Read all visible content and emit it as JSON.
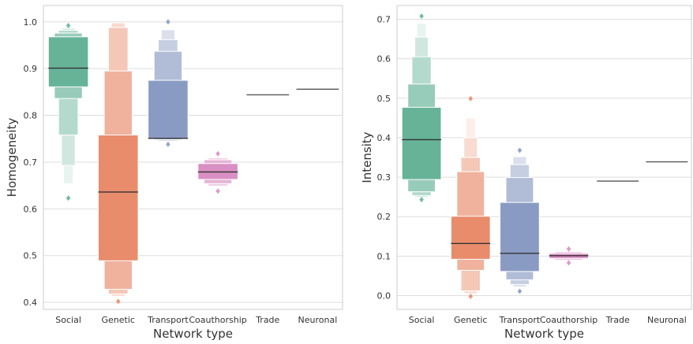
{
  "chart_data": [
    {
      "type": "boxen",
      "xlabel": "Network type",
      "ylabel": "Homogeneity",
      "categories": [
        "Social",
        "Genetic",
        "Transport",
        "Coauthorship",
        "Trade",
        "Neuronal"
      ],
      "ylim": [
        0.385,
        1.035
      ],
      "yticks": [
        "0.4",
        "0.5",
        "0.6",
        "0.7",
        "0.8",
        "0.9",
        "1.0"
      ],
      "grid": "horizontal",
      "colors": [
        "#66b398",
        "#e98c6b",
        "#8a9bc3",
        "#d98fc3",
        "#555555",
        "#555555"
      ],
      "series": [
        {
          "category": "Social",
          "median": 0.901,
          "boxes": [
            [
              0.861,
              0.968
            ],
            [
              0.836,
              0.976
            ],
            [
              0.758,
              0.982
            ],
            [
              0.693,
              0.986
            ],
            [
              0.654,
              0.989
            ]
          ],
          "outliers": [
            0.623,
            0.992
          ]
        },
        {
          "category": "Genetic",
          "median": 0.636,
          "boxes": [
            [
              0.489,
              0.758
            ],
            [
              0.428,
              0.895
            ],
            [
              0.418,
              0.988
            ],
            [
              0.413,
              0.998
            ]
          ],
          "outliers": [
            0.402
          ]
        },
        {
          "category": "Transport",
          "median": 0.751,
          "boxes": [
            [
              0.751,
              0.875
            ],
            [
              0.748,
              0.937
            ],
            [
              0.745,
              0.962
            ],
            [
              0.743,
              0.983
            ]
          ],
          "outliers": [
            0.738,
            1.0
          ]
        },
        {
          "category": "Coauthorship",
          "median": 0.679,
          "boxes": [
            [
              0.663,
              0.697
            ],
            [
              0.654,
              0.705
            ],
            [
              0.649,
              0.709
            ]
          ],
          "outliers": [
            0.638,
            0.718
          ]
        },
        {
          "category": "Trade",
          "median": 0.844,
          "boxes": [],
          "outliers": []
        },
        {
          "category": "Neuronal",
          "median": 0.856,
          "boxes": [],
          "outliers": []
        }
      ]
    },
    {
      "type": "boxen",
      "xlabel": "Network type",
      "ylabel": "Intensity",
      "categories": [
        "Social",
        "Genetic",
        "Transport",
        "Coauthorship",
        "Trade",
        "Neuronal"
      ],
      "ylim": [
        -0.035,
        0.735
      ],
      "yticks": [
        "0.0",
        "0.1",
        "0.2",
        "0.3",
        "0.4",
        "0.5",
        "0.6",
        "0.7"
      ],
      "grid": "horizontal",
      "colors": [
        "#66b398",
        "#e98c6b",
        "#8a9bc3",
        "#d98fc3",
        "#555555",
        "#555555"
      ],
      "series": [
        {
          "category": "Social",
          "median": 0.395,
          "boxes": [
            [
              0.294,
              0.477
            ],
            [
              0.263,
              0.536
            ],
            [
              0.253,
              0.605
            ],
            [
              0.249,
              0.655
            ],
            [
              0.247,
              0.69
            ]
          ],
          "outliers": [
            0.243,
            0.708
          ]
        },
        {
          "category": "Genetic",
          "median": 0.132,
          "boxes": [
            [
              0.092,
              0.201
            ],
            [
              0.064,
              0.314
            ],
            [
              0.012,
              0.35
            ],
            [
              0.005,
              0.4
            ],
            [
              0.002,
              0.45
            ]
          ],
          "outliers": [
            -0.002,
            0.499
          ]
        },
        {
          "category": "Transport",
          "median": 0.107,
          "boxes": [
            [
              0.061,
              0.236
            ],
            [
              0.04,
              0.299
            ],
            [
              0.028,
              0.332
            ],
            [
              0.022,
              0.352
            ]
          ],
          "outliers": [
            0.011,
            0.368
          ]
        },
        {
          "category": "Coauthorship",
          "median": 0.101,
          "boxes": [
            [
              0.094,
              0.107
            ],
            [
              0.09,
              0.111
            ]
          ],
          "outliers": [
            0.083,
            0.118
          ]
        },
        {
          "category": "Trade",
          "median": 0.29,
          "boxes": [],
          "outliers": []
        },
        {
          "category": "Neuronal",
          "median": 0.339,
          "boxes": [],
          "outliers": []
        }
      ]
    }
  ]
}
